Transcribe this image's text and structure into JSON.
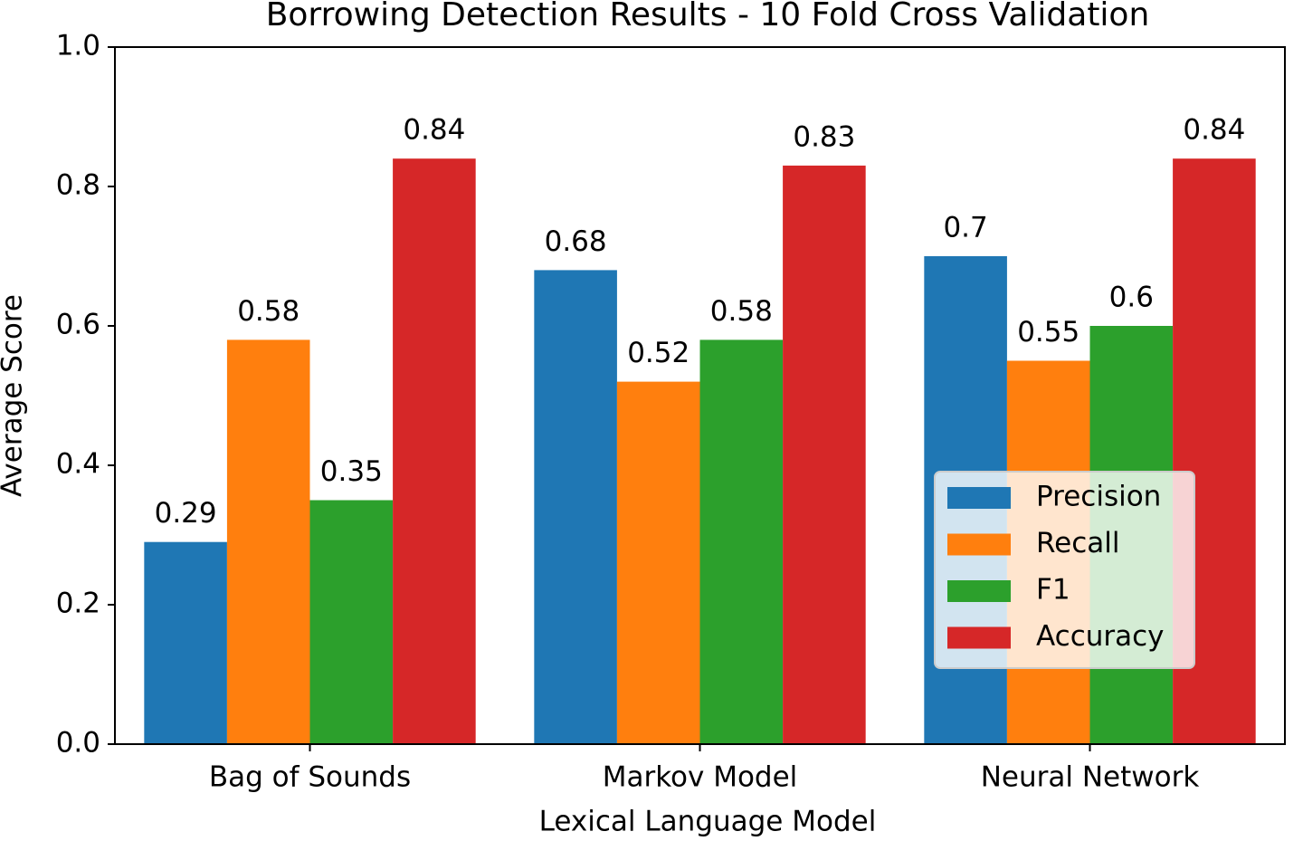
{
  "chart_data": {
    "type": "bar",
    "title": "Borrowing Detection Results - 10 Fold Cross Validation",
    "x_label": "Lexical Language Model",
    "y_label": "Average Score",
    "categories": [
      "Bag of Sounds",
      "Markov Model",
      "Neural Network"
    ],
    "series": [
      {
        "name": "Precision",
        "color": "#1f77b4",
        "values": [
          0.29,
          0.68,
          0.7
        ]
      },
      {
        "name": "Recall",
        "color": "#ff7f0e",
        "values": [
          0.58,
          0.52,
          0.55
        ]
      },
      {
        "name": "F1",
        "color": "#2ca02c",
        "values": [
          0.35,
          0.58,
          0.6
        ]
      },
      {
        "name": "Accuracy",
        "color": "#d62728",
        "values": [
          0.84,
          0.83,
          0.84
        ]
      }
    ],
    "ylim": [
      0,
      1
    ],
    "yticks": [
      {
        "value": 0,
        "label": "0.0"
      },
      0.2,
      0.4,
      0.6,
      0.8,
      {
        "value": 1,
        "label": "1.0"
      }
    ],
    "legend": "lower right"
  }
}
